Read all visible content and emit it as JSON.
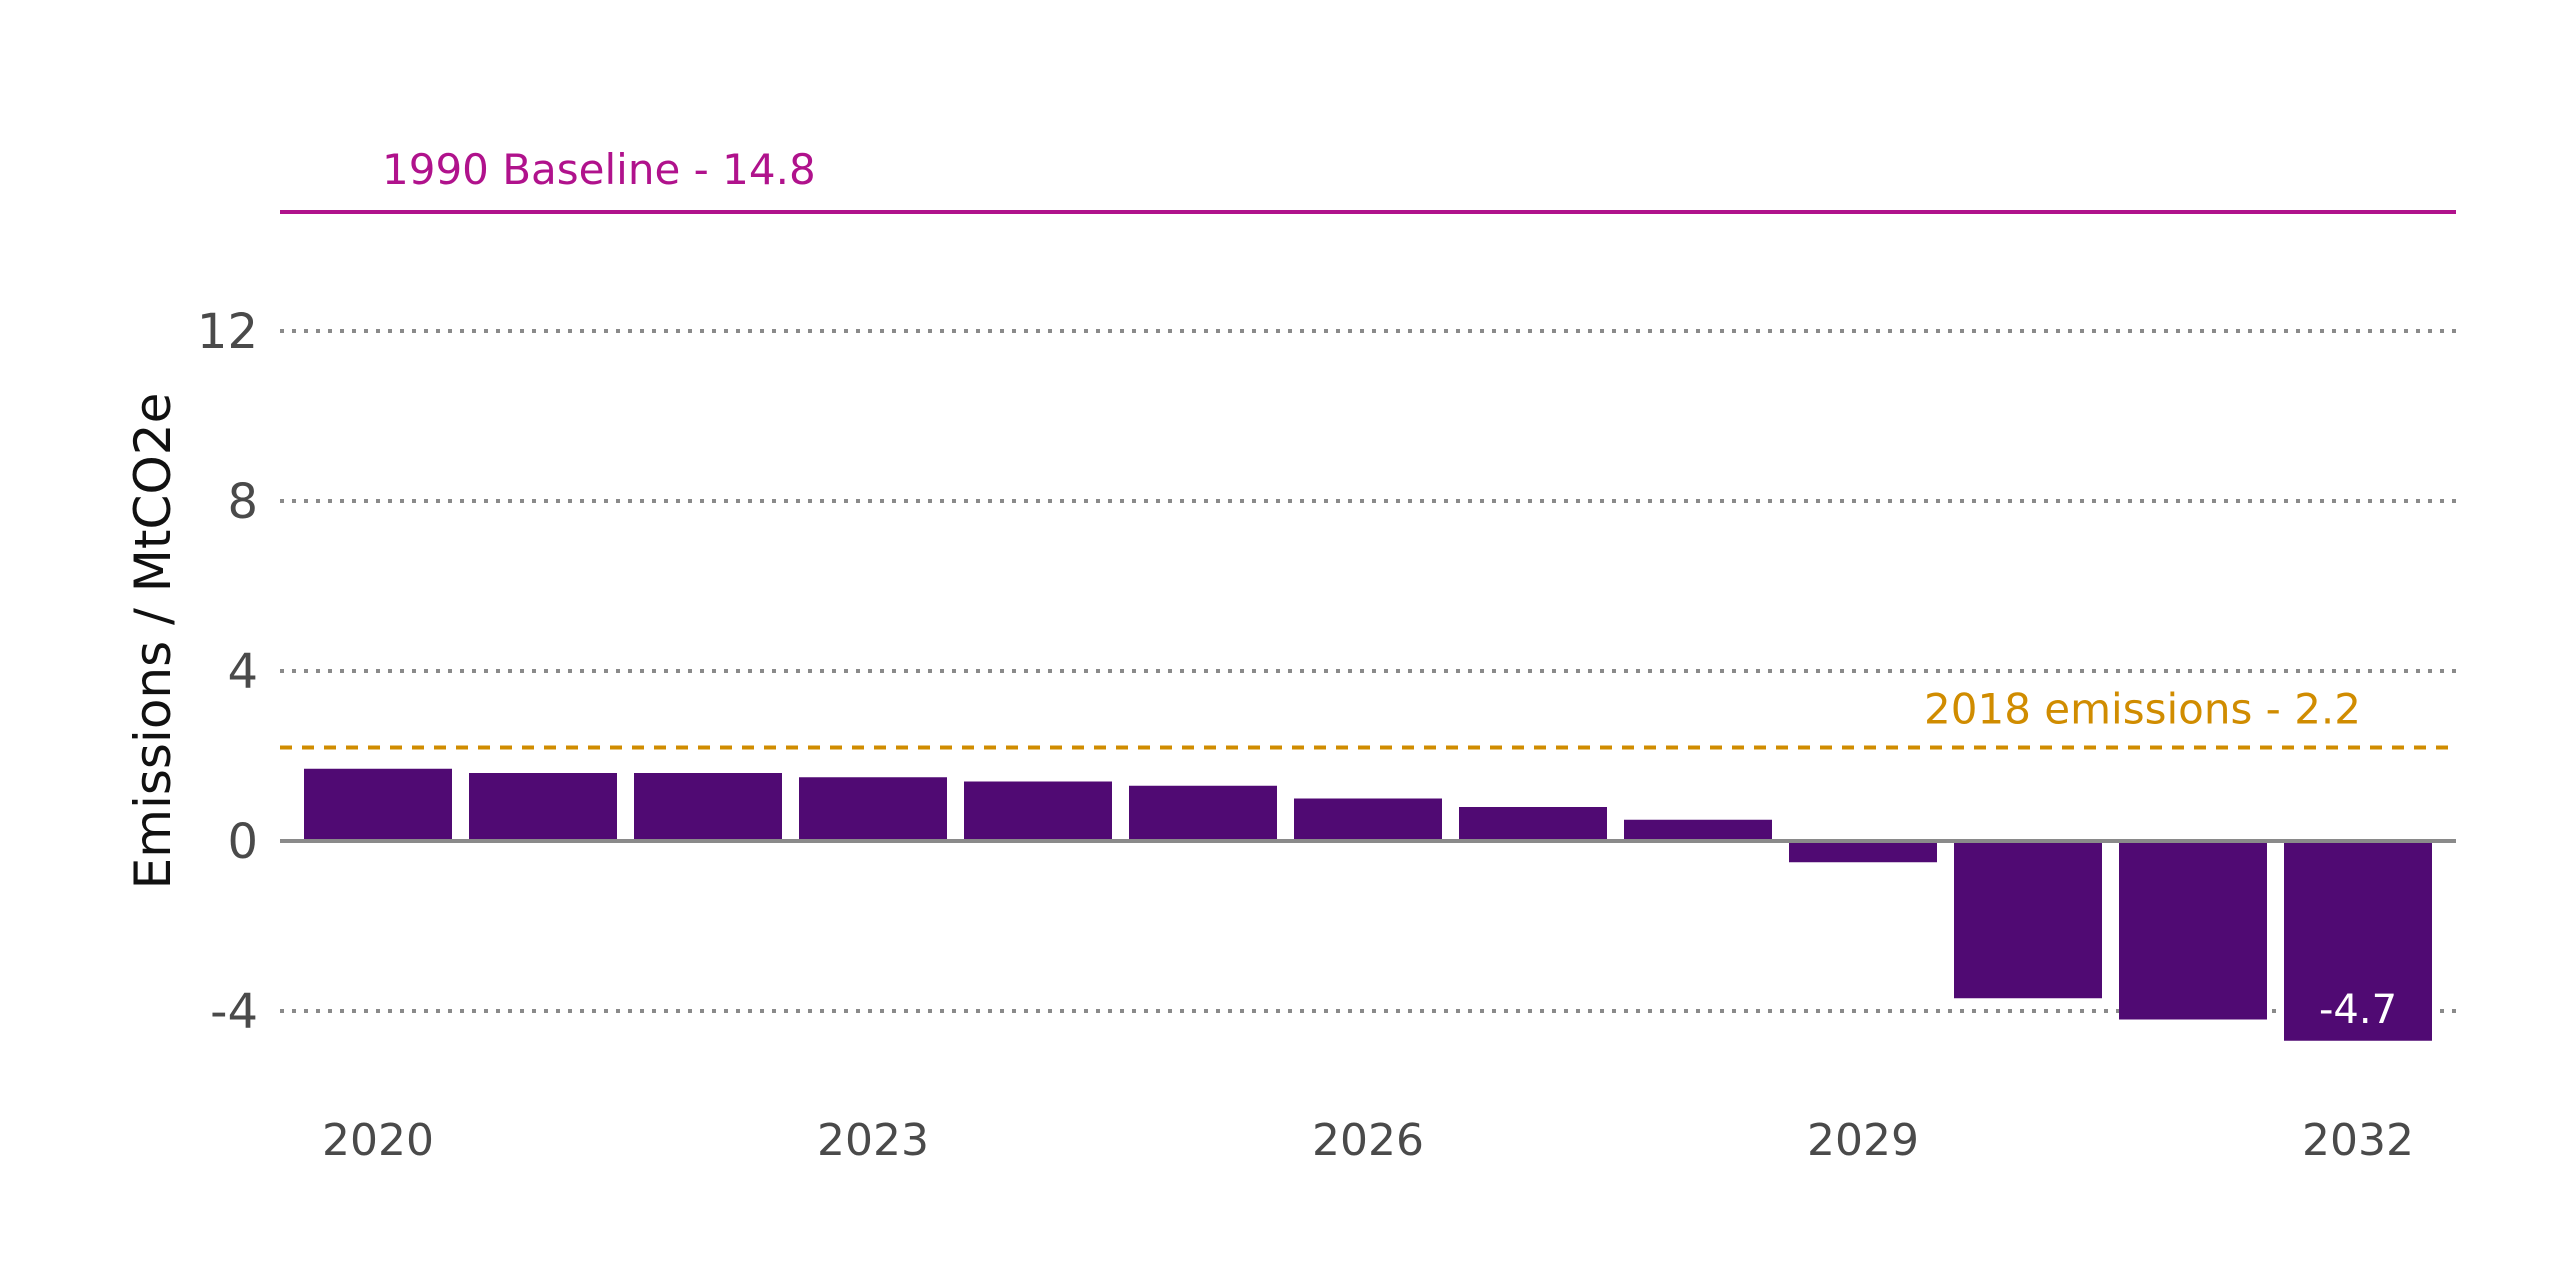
{
  "chart_data": {
    "type": "bar",
    "title": "",
    "xlabel": "",
    "ylabel": "Emissions / MtCO2e",
    "categories": [
      "2020",
      "2021",
      "2022",
      "2023",
      "2024",
      "2025",
      "2026",
      "2027",
      "2028",
      "2029",
      "2030",
      "2031",
      "2032"
    ],
    "values": [
      1.7,
      1.6,
      1.6,
      1.5,
      1.4,
      1.3,
      1.0,
      0.8,
      0.5,
      -0.5,
      -3.7,
      -4.2,
      -4.7
    ],
    "x_tick_labels": [
      "2020",
      "2023",
      "2026",
      "2029",
      "2032"
    ],
    "y_ticks": [
      -4,
      0,
      4,
      8,
      12
    ],
    "y_tick_labels": [
      "-4",
      "0",
      "4",
      "8",
      "12"
    ],
    "ylim": [
      -4.9,
      15
    ],
    "grid": "horizontal dotted",
    "data_labels": [
      {
        "category": "2032",
        "text": "-4.7"
      }
    ],
    "reference_lines": [
      {
        "value": 14.8,
        "label": "1990 Baseline - 14.8",
        "style": "solid",
        "color": "#b0128c"
      },
      {
        "value": 2.2,
        "label": "2018 emissions - 2.2",
        "style": "dashed",
        "color": "#d08c00"
      }
    ],
    "colors": {
      "bar": "#500a73",
      "grid": "#8a8a8a",
      "zero_line": "#8a8a8a"
    }
  }
}
